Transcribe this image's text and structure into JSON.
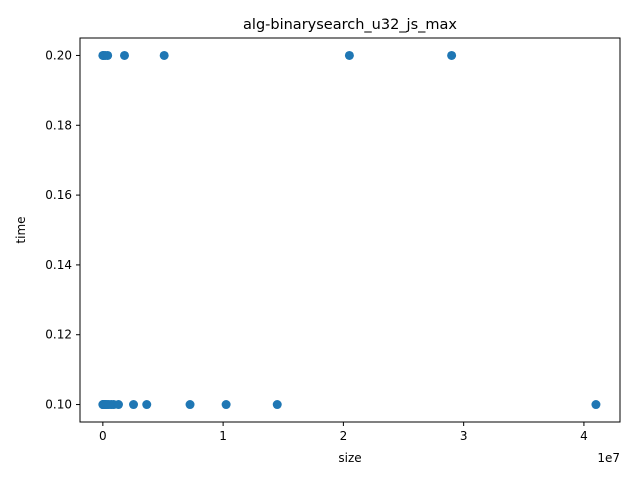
{
  "chart_data": {
    "type": "scatter",
    "title": "alg-binarysearch_u32_js_max",
    "xlabel": "size",
    "ylabel": "time",
    "x_offset_label": "1e7",
    "xlim": [
      -1900000,
      43000000
    ],
    "ylim": [
      0.095,
      0.205
    ],
    "x_ticks": [
      {
        "value": 0,
        "label": "0"
      },
      {
        "value": 10000000,
        "label": "1"
      },
      {
        "value": 20000000,
        "label": "2"
      },
      {
        "value": 30000000,
        "label": "3"
      },
      {
        "value": 40000000,
        "label": "4"
      }
    ],
    "y_ticks": [
      {
        "value": 0.1,
        "label": "0.10"
      },
      {
        "value": 0.12,
        "label": "0.12"
      },
      {
        "value": 0.14,
        "label": "0.14"
      },
      {
        "value": 0.16,
        "label": "0.16"
      },
      {
        "value": 0.18,
        "label": "0.18"
      },
      {
        "value": 0.2,
        "label": "0.20"
      }
    ],
    "grid": false,
    "marker_color": "#1f77b4",
    "series": [
      {
        "points": [
          {
            "x": 10,
            "y": 0.2
          },
          {
            "x": 60000,
            "y": 0.2
          },
          {
            "x": 200000,
            "y": 0.2
          },
          {
            "x": 400000,
            "y": 0.2
          },
          {
            "x": 1800000,
            "y": 0.2
          },
          {
            "x": 5100000,
            "y": 0.2
          },
          {
            "x": 20500000,
            "y": 0.2
          },
          {
            "x": 29000000,
            "y": 0.2
          },
          {
            "x": 10,
            "y": 0.1
          },
          {
            "x": 20000,
            "y": 0.1
          },
          {
            "x": 50000,
            "y": 0.1
          },
          {
            "x": 100000,
            "y": 0.1
          },
          {
            "x": 150000,
            "y": 0.1
          },
          {
            "x": 250000,
            "y": 0.1
          },
          {
            "x": 350000,
            "y": 0.1
          },
          {
            "x": 500000,
            "y": 0.1
          },
          {
            "x": 700000,
            "y": 0.1
          },
          {
            "x": 900000,
            "y": 0.1
          },
          {
            "x": 1300000,
            "y": 0.1
          },
          {
            "x": 2550000,
            "y": 0.1
          },
          {
            "x": 3650000,
            "y": 0.1
          },
          {
            "x": 7250000,
            "y": 0.1
          },
          {
            "x": 10250000,
            "y": 0.1
          },
          {
            "x": 14500000,
            "y": 0.1
          },
          {
            "x": 41000000,
            "y": 0.1
          }
        ]
      }
    ]
  }
}
